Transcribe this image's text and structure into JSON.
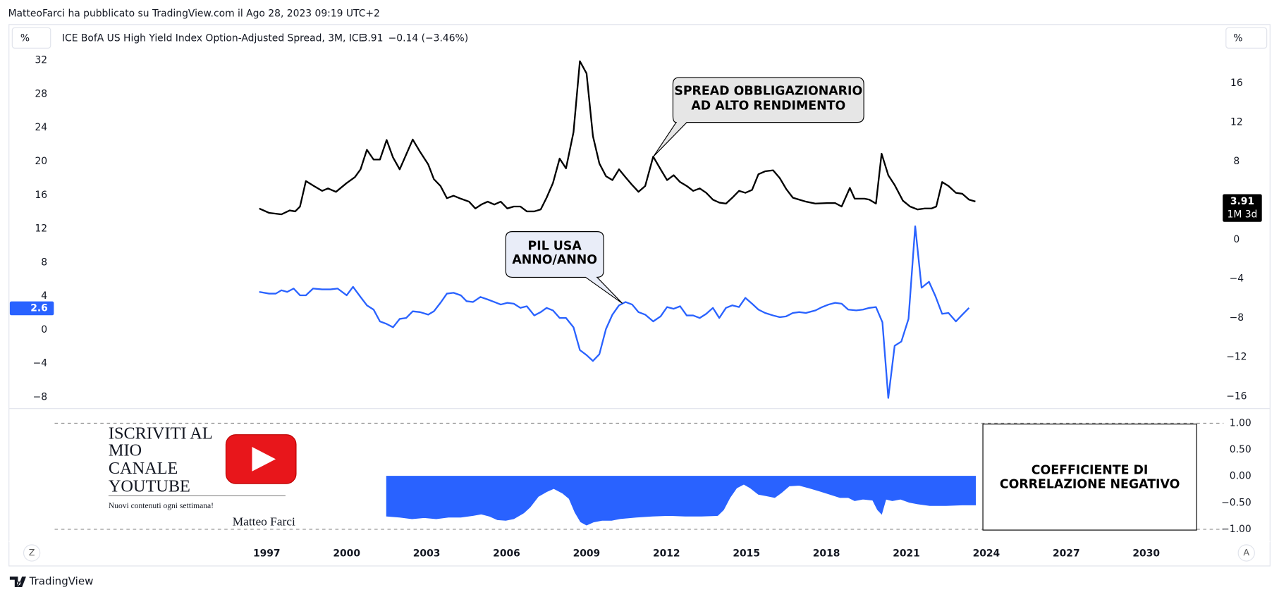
{
  "header": {
    "published": "MatteoFarci ha pubblicato su TradingView.com il Ago 28, 2023 09:19 UTC+2",
    "left_scale": "%",
    "right_scale": "%",
    "symbol": "ICE BofA US High Yield Index Option-Adjusted Spread, 3M, ICE",
    "last": "3.91",
    "change": "−0.14 (−3.46%)"
  },
  "chart_data": [
    {
      "type": "line",
      "xlim": [
        1987.36,
        2032.9
      ],
      "ylim": [
        -9.26,
        33.16
      ],
      "yticks": [
        32,
        28,
        24,
        20,
        16,
        12,
        8,
        4,
        0,
        {
          "value": -4,
          "label": "−4"
        },
        {
          "value": -8,
          "label": "−8"
        }
      ],
      "y2lim": [
        -17.17,
        19.33
      ],
      "y2ticks": [
        16,
        12,
        8,
        0,
        {
          "value": -4,
          "label": "−4"
        },
        {
          "value": -8,
          "label": "−8"
        },
        {
          "value": -12,
          "label": "−12"
        },
        {
          "value": -16,
          "label": "−16"
        }
      ],
      "series": [
        {
          "name": "SPREAD OBBLIGAZIONARIO AD ALTO RENDIMENTO",
          "color": "#000000",
          "axis": "y2",
          "last_value_label": "3.91",
          "countdown": "1M 3d",
          "x": [
            1996.72,
            1997.09,
            1997.55,
            1997.86,
            1998.07,
            1998.25,
            1998.47,
            1998.77,
            1999.08,
            1999.3,
            1999.6,
            2000.0,
            2000.31,
            2000.52,
            2000.76,
            2001.01,
            2001.25,
            2001.5,
            2001.74,
            2001.99,
            2002.23,
            2002.48,
            2002.75,
            2003.06,
            2003.27,
            2003.52,
            2003.76,
            2004.01,
            2004.28,
            2004.59,
            2004.83,
            2005.05,
            2005.29,
            2005.54,
            2005.78,
            2006.03,
            2006.27,
            2006.52,
            2006.76,
            2007.04,
            2007.28,
            2007.5,
            2007.74,
            2007.99,
            2008.23,
            2008.51,
            2008.75,
            2009.0,
            2009.24,
            2009.48,
            2009.73,
            2009.97,
            2010.22,
            2010.46,
            2010.71,
            2010.95,
            2011.2,
            2011.5,
            2011.78,
            2012.02,
            2012.27,
            2012.51,
            2012.76,
            2013.0,
            2013.25,
            2013.49,
            2013.74,
            2013.98,
            2014.23,
            2014.47,
            2014.72,
            2014.96,
            2015.21,
            2015.45,
            2015.7,
            2016.0,
            2016.25,
            2016.49,
            2016.74,
            2016.98,
            2017.23,
            2017.59,
            2018.02,
            2018.33,
            2018.57,
            2018.88,
            2019.06,
            2019.43,
            2019.61,
            2019.86,
            2020.07,
            2020.32,
            2020.56,
            2020.87,
            2021.14,
            2021.42,
            2021.69,
            2021.94,
            2022.12,
            2022.34,
            2022.58,
            2022.86,
            2023.1,
            2023.35,
            2023.59
          ],
          "values": [
            3.2,
            2.75,
            2.6,
            3.0,
            2.9,
            3.4,
            6.0,
            5.5,
            5.0,
            5.25,
            4.9,
            5.8,
            6.4,
            7.2,
            9.2,
            8.2,
            8.2,
            10.2,
            8.4,
            7.2,
            8.7,
            10.25,
            9.0,
            7.7,
            6.2,
            5.5,
            4.25,
            4.5,
            4.2,
            3.9,
            3.2,
            3.6,
            3.9,
            3.6,
            3.9,
            3.2,
            3.4,
            3.4,
            2.9,
            2.9,
            3.1,
            4.3,
            5.8,
            8.3,
            7.3,
            11.0,
            18.25,
            17.0,
            10.6,
            7.8,
            6.5,
            6.1,
            7.2,
            6.4,
            5.6,
            4.9,
            5.5,
            8.5,
            7.2,
            6.1,
            6.6,
            5.9,
            5.5,
            5.0,
            5.25,
            4.8,
            4.1,
            3.8,
            3.7,
            4.3,
            5.0,
            4.8,
            5.1,
            6.7,
            7.0,
            7.1,
            6.3,
            5.2,
            4.3,
            4.1,
            3.9,
            3.7,
            3.75,
            3.75,
            3.4,
            5.3,
            4.2,
            4.2,
            4.1,
            3.7,
            8.8,
            6.6,
            5.6,
            4.0,
            3.4,
            3.1,
            3.2,
            3.2,
            3.4,
            5.9,
            5.5,
            4.8,
            4.7,
            4.1,
            3.91
          ]
        },
        {
          "name": "PIL USA ANNO/ANNO",
          "color": "#2962ff",
          "axis": "y",
          "last_value_label": "2.6",
          "x": [
            1996.72,
            1997.09,
            1997.34,
            1997.55,
            1997.77,
            1998.01,
            1998.25,
            1998.47,
            1998.74,
            1999.08,
            1999.39,
            1999.66,
            2000.0,
            2000.24,
            2000.52,
            2000.76,
            2001.01,
            2001.25,
            2001.5,
            2001.74,
            2001.99,
            2002.23,
            2002.48,
            2002.75,
            2003.06,
            2003.27,
            2003.52,
            2003.76,
            2004.01,
            2004.28,
            2004.5,
            2004.74,
            2005.02,
            2005.29,
            2005.54,
            2005.78,
            2006.03,
            2006.27,
            2006.52,
            2006.76,
            2007.04,
            2007.28,
            2007.5,
            2007.74,
            2007.99,
            2008.23,
            2008.51,
            2008.75,
            2009.0,
            2009.24,
            2009.48,
            2009.73,
            2009.97,
            2010.22,
            2010.46,
            2010.71,
            2010.95,
            2011.2,
            2011.5,
            2011.78,
            2012.02,
            2012.27,
            2012.51,
            2012.76,
            2013.0,
            2013.25,
            2013.49,
            2013.74,
            2013.98,
            2014.23,
            2014.47,
            2014.72,
            2014.96,
            2015.21,
            2015.45,
            2015.7,
            2016.0,
            2016.25,
            2016.49,
            2016.74,
            2016.98,
            2017.23,
            2017.59,
            2017.84,
            2018.08,
            2018.33,
            2018.57,
            2018.82,
            2019.12,
            2019.37,
            2019.61,
            2019.86,
            2020.1,
            2020.32,
            2020.56,
            2020.81,
            2021.08,
            2021.33,
            2021.57,
            2021.85,
            2022.09,
            2022.34,
            2022.58,
            2022.86,
            2023.1,
            2023.35
          ],
          "values": [
            4.5,
            4.3,
            4.3,
            4.7,
            4.5,
            4.9,
            4.1,
            4.1,
            4.9,
            4.8,
            4.8,
            4.9,
            4.1,
            5.1,
            3.9,
            2.9,
            2.4,
            1.0,
            0.7,
            0.3,
            1.3,
            1.4,
            2.2,
            2.1,
            1.8,
            2.2,
            3.2,
            4.3,
            4.4,
            4.1,
            3.4,
            3.3,
            3.9,
            3.6,
            3.3,
            3.0,
            3.2,
            3.1,
            2.6,
            2.8,
            1.7,
            2.1,
            2.6,
            2.3,
            1.4,
            1.4,
            0.3,
            -2.4,
            -3.0,
            -3.7,
            -2.9,
            0.1,
            1.8,
            2.9,
            3.3,
            3.0,
            2.1,
            1.8,
            1.0,
            1.6,
            2.7,
            2.5,
            2.8,
            1.7,
            1.7,
            1.4,
            1.9,
            2.6,
            1.4,
            2.6,
            2.9,
            2.7,
            3.8,
            3.1,
            2.4,
            2.0,
            1.7,
            1.5,
            1.6,
            2.0,
            2.1,
            2.0,
            2.3,
            2.7,
            3.0,
            3.2,
            3.1,
            2.4,
            2.3,
            2.4,
            2.6,
            2.7,
            0.9,
            -8.1,
            -1.9,
            -1.4,
            1.3,
            12.3,
            5.0,
            5.7,
            4.0,
            1.9,
            2.0,
            1.0,
            1.8,
            2.6
          ]
        }
      ],
      "annotations": [
        {
          "lines": [
            "SPREAD OBBLIGAZIONARIO",
            "AD ALTO RENDIMENTO"
          ]
        },
        {
          "lines": [
            "PIL USA",
            "ANNO/ANNO"
          ]
        }
      ]
    },
    {
      "type": "area",
      "xlim": [
        1987.36,
        2032.9
      ],
      "xticks": [
        1997,
        2000,
        2003,
        2006,
        2009,
        2012,
        2015,
        2018,
        2021,
        2024,
        2027,
        2030
      ],
      "ylim": [
        -1.23,
        1.26
      ],
      "yticks": [
        {
          "value": 1,
          "label": "1.00"
        },
        {
          "value": 0.5,
          "label": "0.50"
        },
        {
          "value": 0,
          "label": "0.00"
        },
        {
          "value": -0.5,
          "label": "−0.50"
        },
        {
          "value": -1,
          "label": "−1.00"
        }
      ],
      "color": "#2962ff",
      "x": [
        2001.5,
        2001.99,
        2002.45,
        2002.91,
        2003.36,
        2003.82,
        2004.28,
        2004.74,
        2005.05,
        2005.35,
        2005.66,
        2005.97,
        2006.27,
        2006.64,
        2006.88,
        2007.19,
        2007.5,
        2007.77,
        2008.11,
        2008.35,
        2008.57,
        2008.78,
        2009.0,
        2009.27,
        2009.58,
        2009.94,
        2010.25,
        2010.86,
        2011.47,
        2012.09,
        2012.7,
        2013.31,
        2013.92,
        2014.14,
        2014.38,
        2014.63,
        2014.9,
        2015.15,
        2015.45,
        2015.76,
        2016.06,
        2016.31,
        2016.61,
        2016.98,
        2017.35,
        2017.75,
        2018.14,
        2018.51,
        2018.82,
        2019.06,
        2019.37,
        2019.74,
        2019.92,
        2020.07,
        2020.23,
        2020.47,
        2020.78,
        2021.11,
        2021.42,
        2021.88,
        2022.49,
        2023.1,
        2023.59
      ],
      "values": [
        -0.75,
        -0.77,
        -0.8,
        -0.78,
        -0.8,
        -0.77,
        -0.77,
        -0.74,
        -0.71,
        -0.75,
        -0.82,
        -0.83,
        -0.8,
        -0.69,
        -0.58,
        -0.38,
        -0.29,
        -0.23,
        -0.32,
        -0.42,
        -0.68,
        -0.86,
        -0.92,
        -0.86,
        -0.83,
        -0.83,
        -0.8,
        -0.77,
        -0.75,
        -0.74,
        -0.75,
        -0.75,
        -0.74,
        -0.63,
        -0.4,
        -0.22,
        -0.15,
        -0.22,
        -0.34,
        -0.37,
        -0.4,
        -0.31,
        -0.18,
        -0.17,
        -0.22,
        -0.28,
        -0.34,
        -0.4,
        -0.4,
        -0.46,
        -0.43,
        -0.45,
        -0.63,
        -0.71,
        -0.43,
        -0.46,
        -0.43,
        -0.49,
        -0.52,
        -0.55,
        -0.55,
        -0.54,
        -0.54
      ],
      "annotations": [
        {
          "lines": [
            "COEFFICIENTE DI",
            "CORRELAZIONE NEGATIVO"
          ]
        }
      ]
    }
  ],
  "promo": {
    "lines": [
      "ISCRIVITI AL",
      "MIO",
      "CANALE",
      "YOUTUBE"
    ],
    "tagline": "Nuovi contenuti ogni settimana!",
    "author": "Matteo Farci"
  },
  "footer": {
    "z_button": "Z",
    "a_button": "A",
    "brand": "TradingView"
  }
}
